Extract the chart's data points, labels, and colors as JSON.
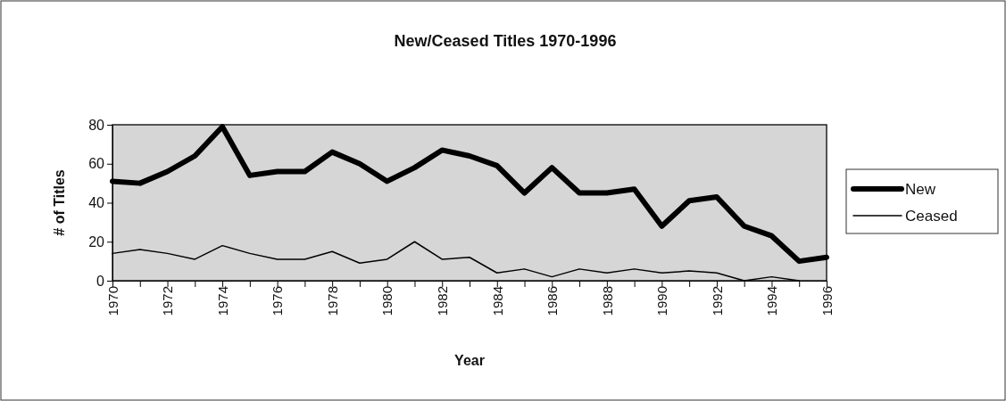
{
  "chart_data": {
    "type": "line",
    "title": "New/Ceased Titles 1970-1996",
    "xlabel": "Year",
    "ylabel": "# of Titles",
    "x": [
      1970,
      1971,
      1972,
      1973,
      1974,
      1975,
      1976,
      1977,
      1978,
      1979,
      1980,
      1981,
      1982,
      1983,
      1984,
      1985,
      1986,
      1987,
      1988,
      1989,
      1990,
      1991,
      1992,
      1993,
      1994,
      1995,
      1996
    ],
    "series": [
      {
        "name": "New",
        "color": "#000000",
        "values": [
          51,
          50,
          56,
          64,
          79,
          54,
          56,
          56,
          66,
          60,
          51,
          58,
          67,
          64,
          59,
          45,
          58,
          45,
          45,
          47,
          28,
          41,
          43,
          28,
          23,
          10,
          12
        ]
      },
      {
        "name": "Ceased",
        "color": "#000000",
        "values": [
          14,
          16,
          14,
          11,
          18,
          14,
          11,
          11,
          15,
          9,
          11,
          20,
          11,
          12,
          4,
          6,
          2,
          6,
          4,
          6,
          4,
          5,
          4,
          0,
          2,
          0,
          null
        ]
      }
    ],
    "xlim": [
      1970,
      1996
    ],
    "xticks": [
      1970,
      {
        "value": 1971,
        "label": null
      },
      1972,
      {
        "value": 1973,
        "label": null
      },
      1974,
      {
        "value": 1975,
        "label": null
      },
      1976,
      {
        "value": 1977,
        "label": null
      },
      1978,
      {
        "value": 1979,
        "label": null
      },
      1980,
      {
        "value": 1981,
        "label": null
      },
      1982,
      {
        "value": 1983,
        "label": null
      },
      1984,
      {
        "value": 1985,
        "label": null
      },
      1986,
      {
        "value": 1987,
        "label": null
      },
      1988,
      {
        "value": 1989,
        "label": null
      },
      1990,
      {
        "value": 1991,
        "label": null
      },
      1992,
      {
        "value": 1993,
        "label": null
      },
      1994,
      {
        "value": 1995,
        "label": null
      },
      1996
    ],
    "ylim": [
      0,
      80
    ],
    "yticks": [
      0,
      20,
      40,
      60,
      80
    ],
    "grid": false,
    "legend": "right",
    "marker": "none",
    "line_style": "solid"
  }
}
